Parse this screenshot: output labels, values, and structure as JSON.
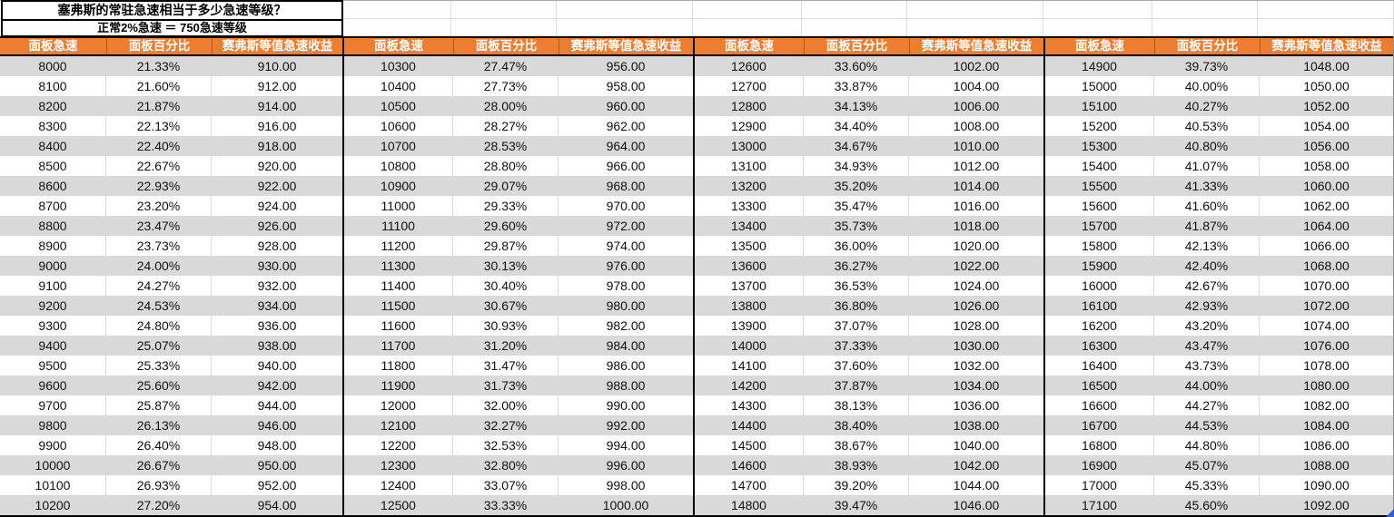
{
  "title": "塞弗斯的常驻急速相当于多少急速等级？",
  "subtitle": "正常2%急速 ＝ 750急速等级",
  "columns": [
    "面板急速",
    "面板百分比",
    "赛弗斯等值急速收益"
  ],
  "groups": [
    [
      [
        "8000",
        "21.33%",
        "910.00"
      ],
      [
        "8100",
        "21.60%",
        "912.00"
      ],
      [
        "8200",
        "21.87%",
        "914.00"
      ],
      [
        "8300",
        "22.13%",
        "916.00"
      ],
      [
        "8400",
        "22.40%",
        "918.00"
      ],
      [
        "8500",
        "22.67%",
        "920.00"
      ],
      [
        "8600",
        "22.93%",
        "922.00"
      ],
      [
        "8700",
        "23.20%",
        "924.00"
      ],
      [
        "8800",
        "23.47%",
        "926.00"
      ],
      [
        "8900",
        "23.73%",
        "928.00"
      ],
      [
        "9000",
        "24.00%",
        "930.00"
      ],
      [
        "9100",
        "24.27%",
        "932.00"
      ],
      [
        "9200",
        "24.53%",
        "934.00"
      ],
      [
        "9300",
        "24.80%",
        "936.00"
      ],
      [
        "9400",
        "25.07%",
        "938.00"
      ],
      [
        "9500",
        "25.33%",
        "940.00"
      ],
      [
        "9600",
        "25.60%",
        "942.00"
      ],
      [
        "9700",
        "25.87%",
        "944.00"
      ],
      [
        "9800",
        "26.13%",
        "946.00"
      ],
      [
        "9900",
        "26.40%",
        "948.00"
      ],
      [
        "10000",
        "26.67%",
        "950.00"
      ],
      [
        "10100",
        "26.93%",
        "952.00"
      ],
      [
        "10200",
        "27.20%",
        "954.00"
      ]
    ],
    [
      [
        "10300",
        "27.47%",
        "956.00"
      ],
      [
        "10400",
        "27.73%",
        "958.00"
      ],
      [
        "10500",
        "28.00%",
        "960.00"
      ],
      [
        "10600",
        "28.27%",
        "962.00"
      ],
      [
        "10700",
        "28.53%",
        "964.00"
      ],
      [
        "10800",
        "28.80%",
        "966.00"
      ],
      [
        "10900",
        "29.07%",
        "968.00"
      ],
      [
        "11000",
        "29.33%",
        "970.00"
      ],
      [
        "11100",
        "29.60%",
        "972.00"
      ],
      [
        "11200",
        "29.87%",
        "974.00"
      ],
      [
        "11300",
        "30.13%",
        "976.00"
      ],
      [
        "11400",
        "30.40%",
        "978.00"
      ],
      [
        "11500",
        "30.67%",
        "980.00"
      ],
      [
        "11600",
        "30.93%",
        "982.00"
      ],
      [
        "11700",
        "31.20%",
        "984.00"
      ],
      [
        "11800",
        "31.47%",
        "986.00"
      ],
      [
        "11900",
        "31.73%",
        "988.00"
      ],
      [
        "12000",
        "32.00%",
        "990.00"
      ],
      [
        "12100",
        "32.27%",
        "992.00"
      ],
      [
        "12200",
        "32.53%",
        "994.00"
      ],
      [
        "12300",
        "32.80%",
        "996.00"
      ],
      [
        "12400",
        "33.07%",
        "998.00"
      ],
      [
        "12500",
        "33.33%",
        "1000.00"
      ]
    ],
    [
      [
        "12600",
        "33.60%",
        "1002.00"
      ],
      [
        "12700",
        "33.87%",
        "1004.00"
      ],
      [
        "12800",
        "34.13%",
        "1006.00"
      ],
      [
        "12900",
        "34.40%",
        "1008.00"
      ],
      [
        "13000",
        "34.67%",
        "1010.00"
      ],
      [
        "13100",
        "34.93%",
        "1012.00"
      ],
      [
        "13200",
        "35.20%",
        "1014.00"
      ],
      [
        "13300",
        "35.47%",
        "1016.00"
      ],
      [
        "13400",
        "35.73%",
        "1018.00"
      ],
      [
        "13500",
        "36.00%",
        "1020.00"
      ],
      [
        "13600",
        "36.27%",
        "1022.00"
      ],
      [
        "13700",
        "36.53%",
        "1024.00"
      ],
      [
        "13800",
        "36.80%",
        "1026.00"
      ],
      [
        "13900",
        "37.07%",
        "1028.00"
      ],
      [
        "14000",
        "37.33%",
        "1030.00"
      ],
      [
        "14100",
        "37.60%",
        "1032.00"
      ],
      [
        "14200",
        "37.87%",
        "1034.00"
      ],
      [
        "14300",
        "38.13%",
        "1036.00"
      ],
      [
        "14400",
        "38.40%",
        "1038.00"
      ],
      [
        "14500",
        "38.67%",
        "1040.00"
      ],
      [
        "14600",
        "38.93%",
        "1042.00"
      ],
      [
        "14700",
        "39.20%",
        "1044.00"
      ],
      [
        "14800",
        "39.47%",
        "1046.00"
      ]
    ],
    [
      [
        "14900",
        "39.73%",
        "1048.00"
      ],
      [
        "15000",
        "40.00%",
        "1050.00"
      ],
      [
        "15100",
        "40.27%",
        "1052.00"
      ],
      [
        "15200",
        "40.53%",
        "1054.00"
      ],
      [
        "15300",
        "40.80%",
        "1056.00"
      ],
      [
        "15400",
        "41.07%",
        "1058.00"
      ],
      [
        "15500",
        "41.33%",
        "1060.00"
      ],
      [
        "15600",
        "41.60%",
        "1062.00"
      ],
      [
        "15700",
        "41.87%",
        "1064.00"
      ],
      [
        "15800",
        "42.13%",
        "1066.00"
      ],
      [
        "15900",
        "42.40%",
        "1068.00"
      ],
      [
        "16000",
        "42.67%",
        "1070.00"
      ],
      [
        "16100",
        "42.93%",
        "1072.00"
      ],
      [
        "16200",
        "43.20%",
        "1074.00"
      ],
      [
        "16300",
        "43.47%",
        "1076.00"
      ],
      [
        "16400",
        "43.73%",
        "1078.00"
      ],
      [
        "16500",
        "44.00%",
        "1080.00"
      ],
      [
        "16600",
        "44.27%",
        "1082.00"
      ],
      [
        "16700",
        "44.53%",
        "1084.00"
      ],
      [
        "16800",
        "44.80%",
        "1086.00"
      ],
      [
        "16900",
        "45.07%",
        "1088.00"
      ],
      [
        "17000",
        "45.33%",
        "1090.00"
      ],
      [
        "17100",
        "45.60%",
        "1092.00"
      ]
    ]
  ],
  "colors": {
    "header_bg": "#ED7D31",
    "header_text": "#FFFFFF",
    "row_stripe": "#D9D9D9",
    "grid_line": "#D9D9D9",
    "group_border": "#000000",
    "fill_handle": "#2E5FD6"
  }
}
